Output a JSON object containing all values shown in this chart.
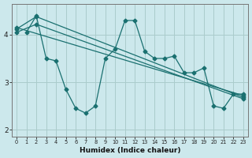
{
  "title": "",
  "xlabel": "Humidex (Indice chaleur)",
  "background_color": "#cce8ec",
  "grid_color": "#aacccc",
  "line_color": "#1a7070",
  "xlim": [
    -0.5,
    23.5
  ],
  "ylim": [
    1.85,
    4.65
  ],
  "yticks": [
    2,
    3,
    4
  ],
  "xticks": [
    0,
    1,
    2,
    3,
    4,
    5,
    6,
    7,
    8,
    9,
    10,
    11,
    12,
    13,
    14,
    15,
    16,
    17,
    18,
    19,
    20,
    21,
    22,
    23
  ],
  "zigzag_x": [
    1,
    2,
    3,
    4,
    5,
    6,
    7,
    8,
    9,
    10,
    11,
    12,
    13,
    14,
    15,
    16,
    17,
    18,
    19,
    20,
    21,
    22,
    23
  ],
  "zigzag_y": [
    4.05,
    4.4,
    3.5,
    3.45,
    2.85,
    2.45,
    2.35,
    2.5,
    3.5,
    3.7,
    4.3,
    4.3,
    3.65,
    3.5,
    3.5,
    3.55,
    3.2,
    3.2,
    3.3,
    2.5,
    2.45,
    2.75,
    2.75
  ],
  "trend1_x": [
    0,
    23
  ],
  "trend1_y": [
    4.15,
    2.72
  ],
  "trend2_x": [
    0,
    2,
    23
  ],
  "trend2_y": [
    4.12,
    4.38,
    2.68
  ],
  "trend3_x": [
    0,
    2,
    23
  ],
  "trend3_y": [
    4.05,
    4.22,
    2.65
  ]
}
